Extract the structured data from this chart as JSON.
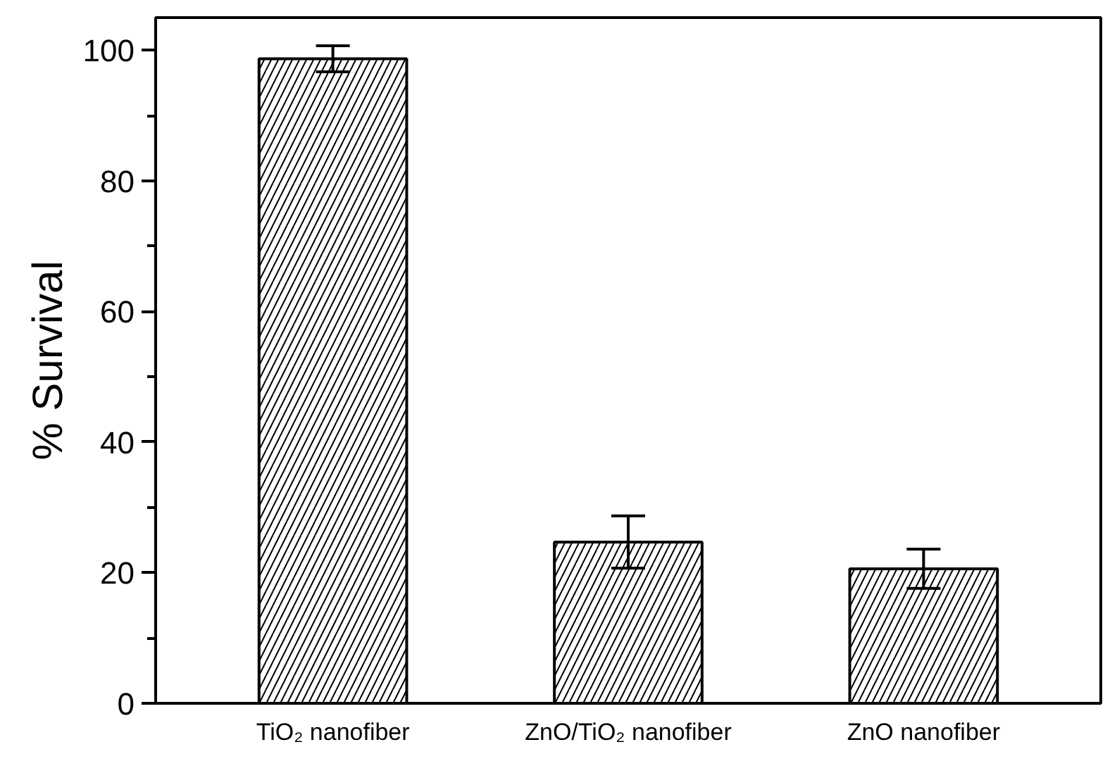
{
  "chart_data": {
    "type": "bar",
    "ylabel": "% Survival",
    "categories": [
      "TiO₂ nanofiber",
      "ZnO/TiO₂ nanofiber",
      "ZnO nanofiber"
    ],
    "values": [
      98.7,
      24.7,
      20.6
    ],
    "errors": [
      2,
      4,
      3
    ],
    "color": "#ffffff",
    "ylim": [
      0,
      105
    ],
    "yticks": [
      0,
      {
        "value": 10,
        "label": null
      },
      20,
      {
        "value": 30,
        "label": null
      },
      40,
      {
        "value": 50,
        "label": null
      },
      60,
      {
        "value": 70,
        "label": null
      },
      80,
      {
        "value": 90,
        "label": null
      },
      100
    ],
    "grid": false
  }
}
